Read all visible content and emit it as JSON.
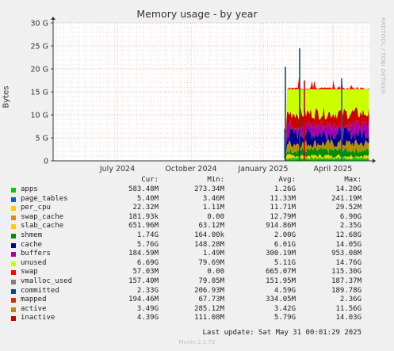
{
  "chart_data": {
    "type": "area",
    "title": "Memory usage - by year",
    "ylabel": "Bytes",
    "ylim": [
      0,
      30
    ],
    "yticks": [
      "0",
      "5 G",
      "10 G",
      "15 G",
      "20 G",
      "25 G",
      "30 G"
    ],
    "xticks": [
      "July 2024",
      "October 2024",
      "January 2025",
      "April 2025"
    ],
    "grid": true
  },
  "side_label": "RRDTOOL / TOBI OETIKER",
  "legend": {
    "headers": {
      "cur": "Cur:",
      "min": "Min:",
      "avg": "Avg:",
      "max": "Max:"
    },
    "rows": [
      {
        "name": "apps",
        "color": "#00cc00",
        "cur": "583.48M",
        "min": "273.34M",
        "avg": "1.26G",
        "max": "14.20G"
      },
      {
        "name": "page_tables",
        "color": "#0066b3",
        "cur": "5.40M",
        "min": "3.46M",
        "avg": "11.33M",
        "max": "241.19M"
      },
      {
        "name": "per_cpu",
        "color": "#ffcc00",
        "cur": "22.32M",
        "min": "1.11M",
        "avg": "11.71M",
        "max": "29.52M"
      },
      {
        "name": "swap_cache",
        "color": "#ff8000",
        "cur": "181.93k",
        "min": "0.00",
        "avg": "12.79M",
        "max": "6.90G"
      },
      {
        "name": "slab_cache",
        "color": "#ffcc00",
        "cur": "651.96M",
        "min": "63.12M",
        "avg": "914.86M",
        "max": "2.35G"
      },
      {
        "name": "shmem",
        "color": "#008f00",
        "cur": "1.74G",
        "min": "164.00k",
        "avg": "2.00G",
        "max": "12.68G"
      },
      {
        "name": "cache",
        "color": "#00008f",
        "cur": "5.76G",
        "min": "148.28M",
        "avg": "6.01G",
        "max": "14.05G"
      },
      {
        "name": "buffers",
        "color": "#a800a8",
        "cur": "184.59M",
        "min": "1.49M",
        "avg": "300.19M",
        "max": "953.08M"
      },
      {
        "name": "unused",
        "color": "#ccff00",
        "cur": "6.69G",
        "min": "79.69M",
        "avg": "5.11G",
        "max": "14.76G"
      },
      {
        "name": "swap",
        "color": "#ff0000",
        "cur": "57.03M",
        "min": "0.00",
        "avg": "665.07M",
        "max": "115.30G"
      },
      {
        "name": "vmalloc_used",
        "color": "#808080",
        "cur": "157.40M",
        "min": "79.05M",
        "avg": "151.95M",
        "max": "187.37M"
      },
      {
        "name": "committed",
        "color": "#005078",
        "cur": "2.33G",
        "min": "206.93M",
        "avg": "4.59G",
        "max": "189.78G"
      },
      {
        "name": "mapped",
        "color": "#cc3300",
        "cur": "194.46M",
        "min": "67.73M",
        "avg": "334.05M",
        "max": "2.36G"
      },
      {
        "name": "active",
        "color": "#b38f00",
        "cur": "3.49G",
        "min": "285.12M",
        "avg": "3.42G",
        "max": "11.56G"
      },
      {
        "name": "inactive",
        "color": "#cc0000",
        "cur": "4.39G",
        "min": "111.08M",
        "avg": "5.79G",
        "max": "14.03G"
      }
    ]
  },
  "footer": "Last update: Sat May 31 00:01:29 2025",
  "munin": "Munin 2.0.73"
}
